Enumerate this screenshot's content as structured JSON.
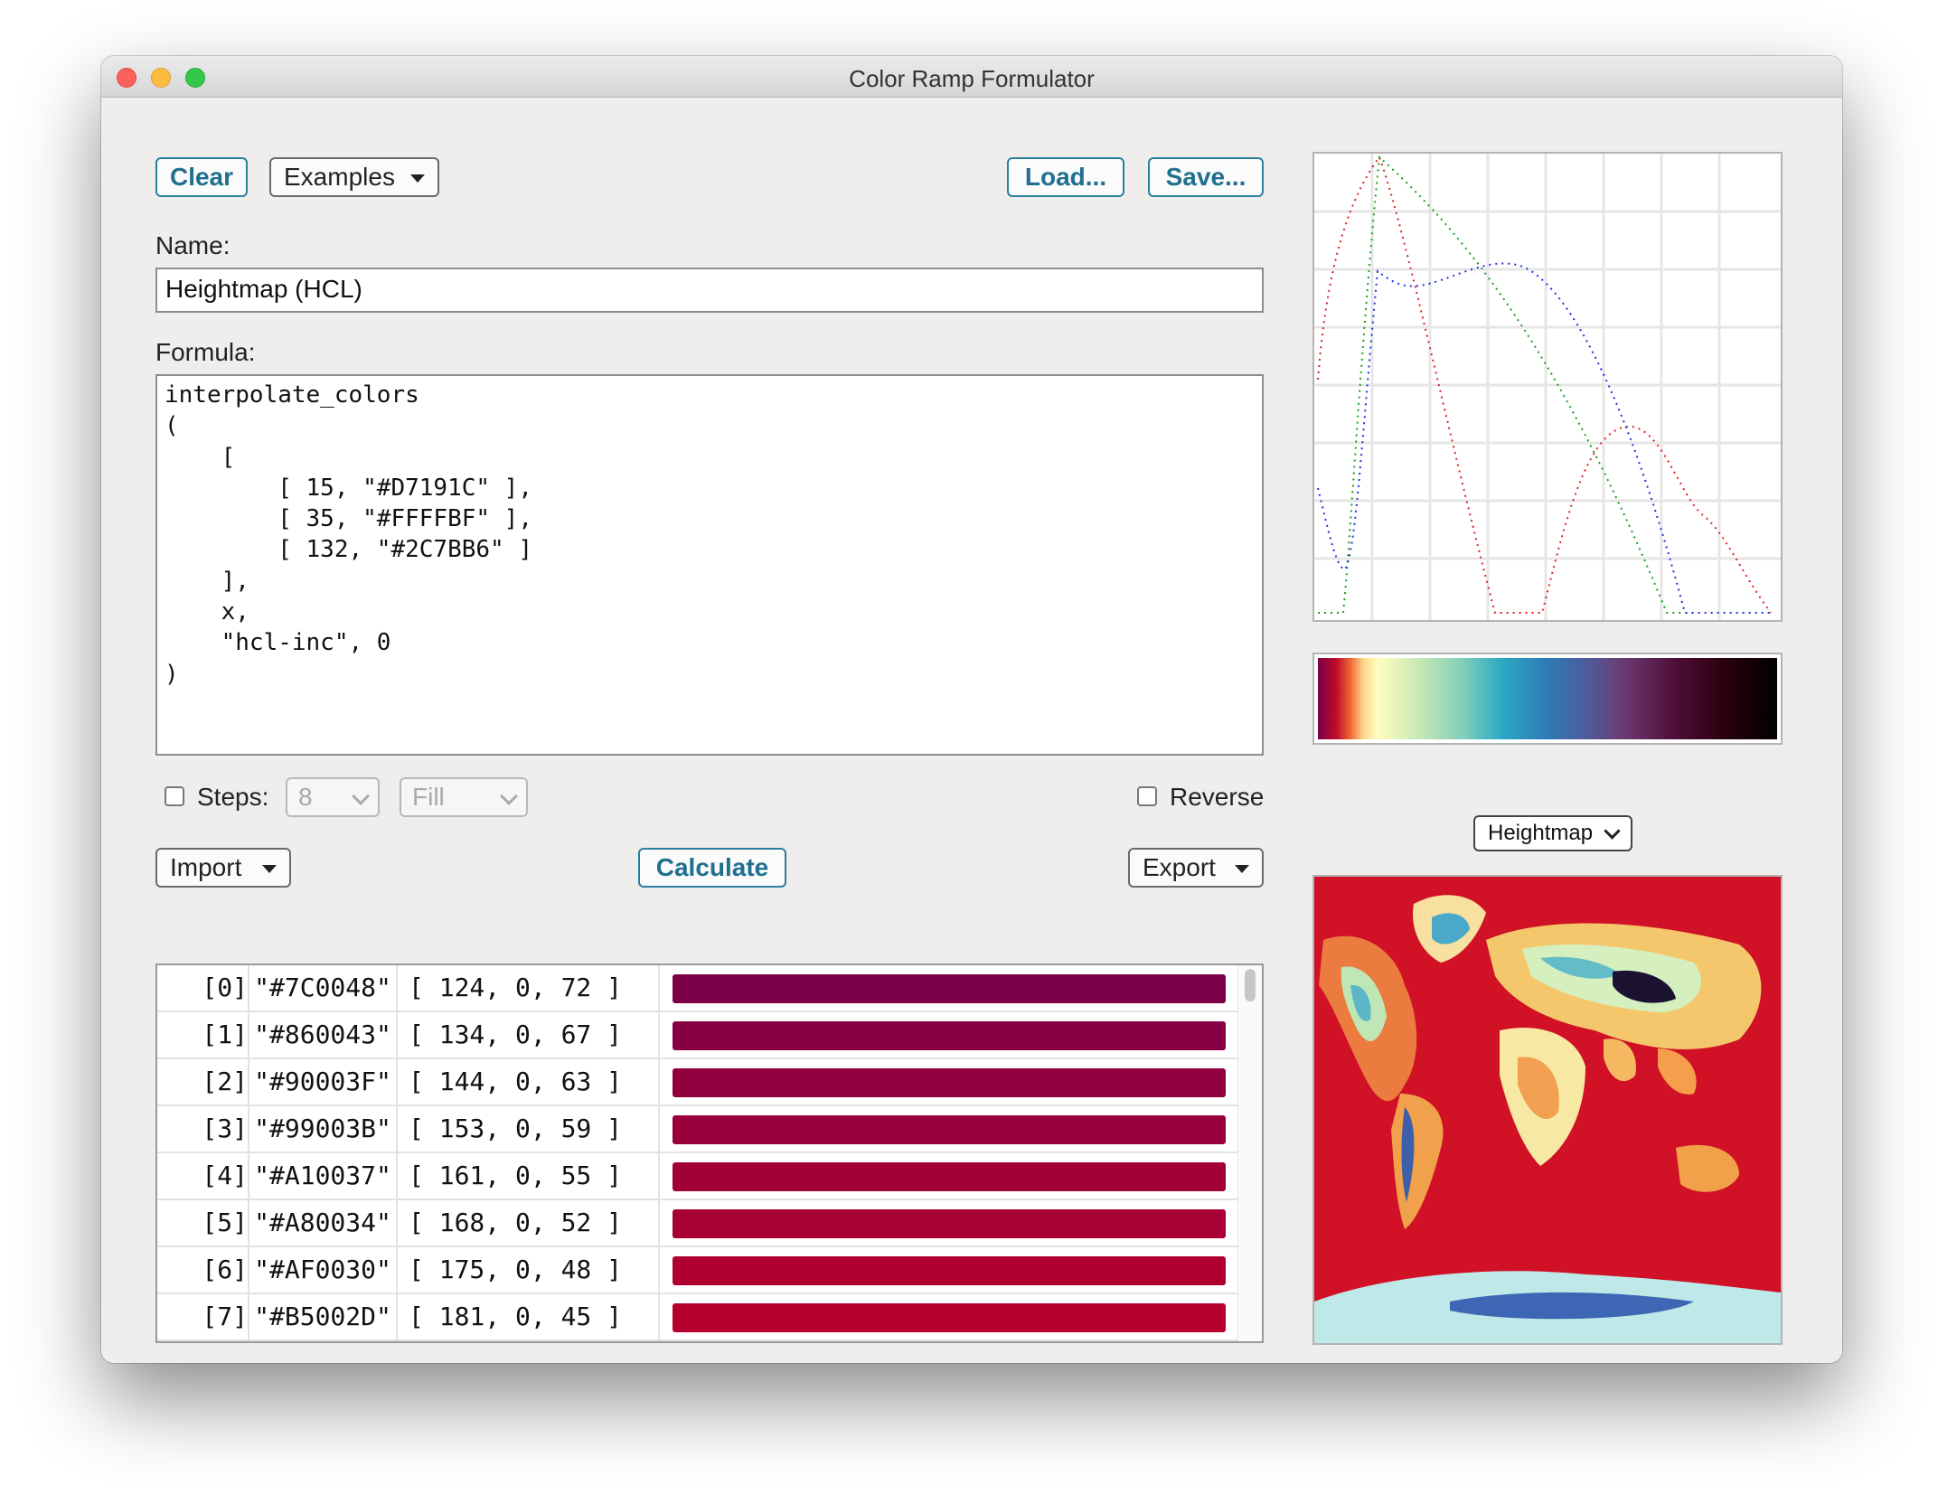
{
  "window": {
    "title": "Color Ramp Formulator"
  },
  "toolbar": {
    "clear_label": "Clear",
    "examples_label": "Examples",
    "load_label": "Load...",
    "save_label": "Save..."
  },
  "name_field": {
    "label": "Name:",
    "value": "Heightmap (HCL)"
  },
  "formula_field": {
    "label": "Formula:",
    "value": "interpolate_colors\n(\n    [\n        [ 15, \"#D7191C\" ],\n        [ 35, \"#FFFFBF\" ],\n        [ 132, \"#2C7BB6\" ]\n    ],\n    x,\n    \"hcl-inc\", 0\n)"
  },
  "options": {
    "steps_label": "Steps:",
    "steps_checked": false,
    "steps_value": "8",
    "fill_value": "Fill",
    "reverse_label": "Reverse",
    "reverse_checked": false
  },
  "actions": {
    "import_label": "Import",
    "calculate_label": "Calculate",
    "export_label": "Export"
  },
  "colors": [
    {
      "index": "[0]",
      "hex": "\"#7C0048\"",
      "rgb": "[ 124, 0, 72 ]",
      "swatch": "#7C0048"
    },
    {
      "index": "[1]",
      "hex": "\"#860043\"",
      "rgb": "[ 134, 0, 67 ]",
      "swatch": "#860043"
    },
    {
      "index": "[2]",
      "hex": "\"#90003F\"",
      "rgb": "[ 144, 0, 63 ]",
      "swatch": "#90003F"
    },
    {
      "index": "[3]",
      "hex": "\"#99003B\"",
      "rgb": "[ 153, 0, 59 ]",
      "swatch": "#99003B"
    },
    {
      "index": "[4]",
      "hex": "\"#A10037\"",
      "rgb": "[ 161, 0, 55 ]",
      "swatch": "#A10037"
    },
    {
      "index": "[5]",
      "hex": "\"#A80034\"",
      "rgb": "[ 168, 0, 52 ]",
      "swatch": "#A80034"
    },
    {
      "index": "[6]",
      "hex": "\"#AF0030\"",
      "rgb": "[ 175, 0, 48 ]",
      "swatch": "#AF0030"
    },
    {
      "index": "[7]",
      "hex": "\"#B5002D\"",
      "rgb": "[ 181, 0, 45 ]",
      "swatch": "#B5002D"
    }
  ],
  "preview": {
    "map_select_value": "Heightmap",
    "accent": "#2a7f9e",
    "graph_colors": {
      "red": "#e02020",
      "green": "#1aa01a",
      "blue": "#2030e0"
    }
  }
}
